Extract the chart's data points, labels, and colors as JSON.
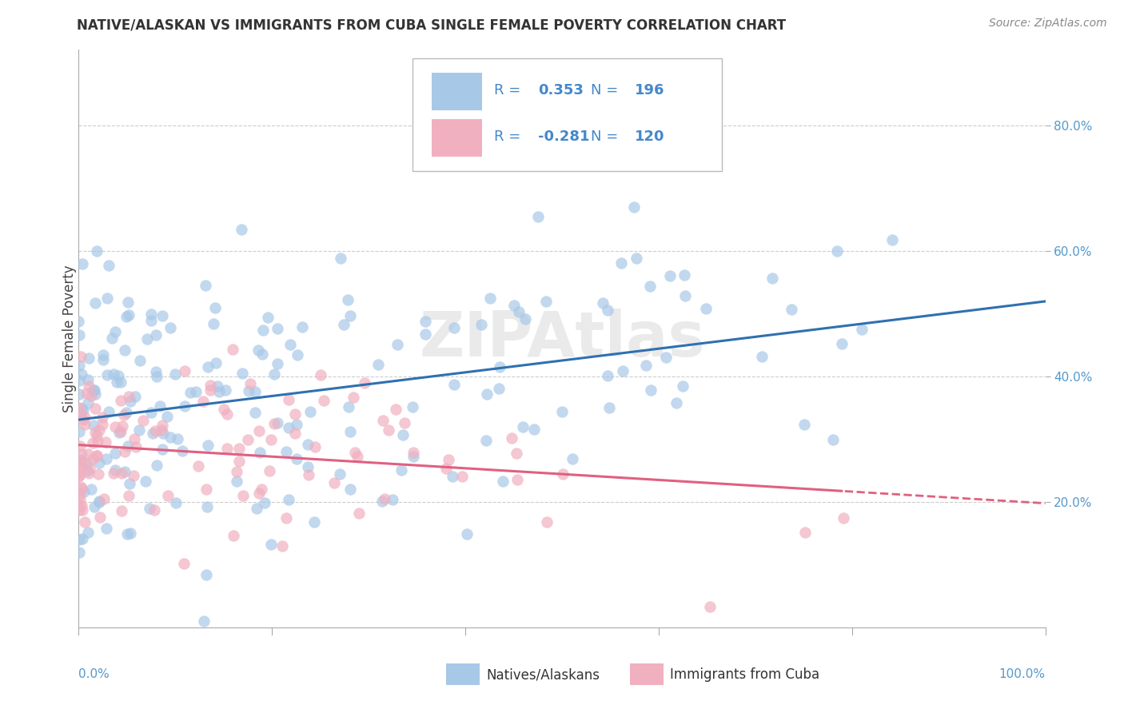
{
  "title": "NATIVE/ALASKAN VS IMMIGRANTS FROM CUBA SINGLE FEMALE POVERTY CORRELATION CHART",
  "source": "Source: ZipAtlas.com",
  "ylabel": "Single Female Poverty",
  "native_R": 0.353,
  "native_N": 196,
  "cuba_R": -0.281,
  "cuba_N": 120,
  "native_color": "#a8c8e8",
  "cuba_color": "#f0b0c0",
  "native_line_color": "#3070b0",
  "cuba_line_color": "#e06080",
  "watermark": "ZIPAtlas",
  "background_color": "#ffffff",
  "grid_color": "#cccccc",
  "legend_label_native": "Natives/Alaskans",
  "legend_label_cuba": "Immigrants from Cuba",
  "legend_text_color": "#4488cc",
  "title_color": "#333333",
  "source_color": "#888888"
}
